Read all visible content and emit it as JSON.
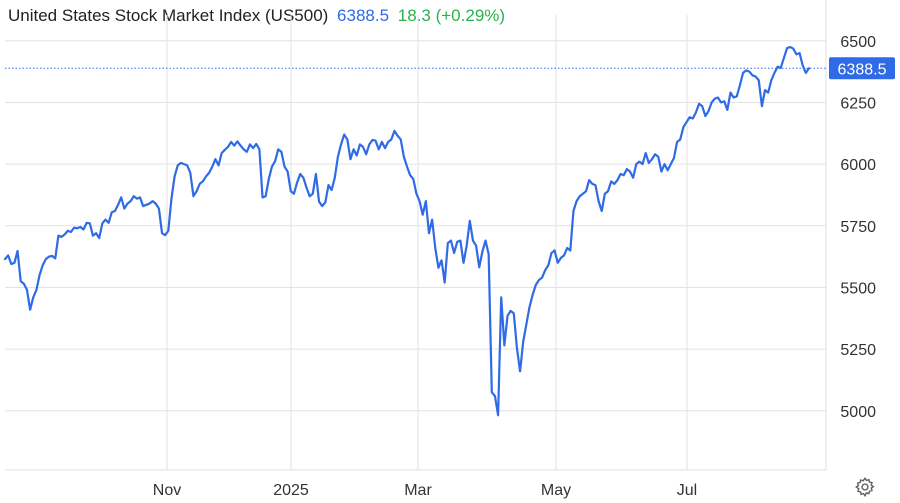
{
  "header": {
    "title": "United States Stock Market Index (US500)",
    "price": "6388.5",
    "change": "18.3 (+0.29%)"
  },
  "colors": {
    "line": "#2f6be6",
    "up": "#2bb24c",
    "price_tag": "#2f6be6",
    "grid": "#e2e2e2",
    "text": "#333333"
  },
  "icons": {
    "settings": "gear-icon"
  },
  "chart_data": {
    "type": "line",
    "title": "United States Stock Market Index (US500)",
    "xlabel": "",
    "ylabel": "",
    "x_tick_labels": [
      "Nov",
      "2025",
      "Mar",
      "May",
      "Jul"
    ],
    "y_tick_labels": [
      "6500",
      "6250",
      "6000",
      "5750",
      "5500",
      "5250",
      "5000"
    ],
    "ylim": [
      4760,
      6630
    ],
    "grid": true,
    "legend": "none",
    "last_value_label": "6388.5",
    "series": [
      {
        "name": "US500",
        "values": [
          5615,
          5630,
          5595,
          5600,
          5648,
          5525,
          5515,
          5490,
          5410,
          5460,
          5490,
          5550,
          5590,
          5615,
          5625,
          5628,
          5618,
          5710,
          5705,
          5715,
          5730,
          5725,
          5742,
          5740,
          5745,
          5735,
          5762,
          5760,
          5710,
          5720,
          5700,
          5760,
          5775,
          5762,
          5805,
          5810,
          5835,
          5865,
          5820,
          5840,
          5850,
          5870,
          5860,
          5865,
          5830,
          5835,
          5840,
          5850,
          5840,
          5820,
          5720,
          5712,
          5730,
          5860,
          5950,
          5995,
          6005,
          6000,
          5995,
          5965,
          5870,
          5890,
          5920,
          5930,
          5950,
          5965,
          5990,
          6020,
          5995,
          6045,
          6058,
          6070,
          6090,
          6075,
          6092,
          6075,
          6060,
          6050,
          6080,
          6065,
          6082,
          6060,
          5865,
          5870,
          5940,
          5990,
          6012,
          6060,
          6050,
          5990,
          5970,
          5890,
          5880,
          5925,
          5960,
          5945,
          5905,
          5870,
          5880,
          5960,
          5848,
          5830,
          5845,
          5915,
          5895,
          5945,
          6030,
          6080,
          6120,
          6100,
          6020,
          6060,
          6035,
          6080,
          6070,
          6040,
          6080,
          6098,
          6095,
          6060,
          6090,
          6065,
          6090,
          6100,
          6135,
          6115,
          6100,
          6030,
          5990,
          5955,
          5940,
          5880,
          5850,
          5795,
          5850,
          5720,
          5775,
          5660,
          5580,
          5610,
          5520,
          5680,
          5690,
          5640,
          5685,
          5690,
          5600,
          5670,
          5770,
          5690,
          5670,
          5582,
          5645,
          5690,
          5635,
          5075,
          5060,
          4982,
          5460,
          5265,
          5385,
          5405,
          5395,
          5255,
          5160,
          5280,
          5350,
          5420,
          5470,
          5510,
          5530,
          5540,
          5570,
          5590,
          5640,
          5650,
          5600,
          5620,
          5630,
          5660,
          5650,
          5810,
          5850,
          5870,
          5880,
          5890,
          5935,
          5920,
          5915,
          5850,
          5810,
          5880,
          5890,
          5930,
          5920,
          5935,
          5960,
          5955,
          5980,
          5970,
          5945,
          6000,
          6010,
          6000,
          6045,
          6005,
          6020,
          6040,
          6030,
          5970,
          6000,
          5975,
          6000,
          6025,
          6090,
          6100,
          6150,
          6170,
          6190,
          6185,
          6210,
          6245,
          6235,
          6195,
          6215,
          6250,
          6265,
          6270,
          6250,
          6255,
          6220,
          6290,
          6270,
          6275,
          6320,
          6370,
          6380,
          6375,
          6360,
          6355,
          6340,
          6235,
          6300,
          6290,
          6340,
          6370,
          6395,
          6390,
          6430,
          6470,
          6475,
          6468,
          6445,
          6450,
          6400,
          6370,
          6388.5
        ]
      }
    ]
  }
}
